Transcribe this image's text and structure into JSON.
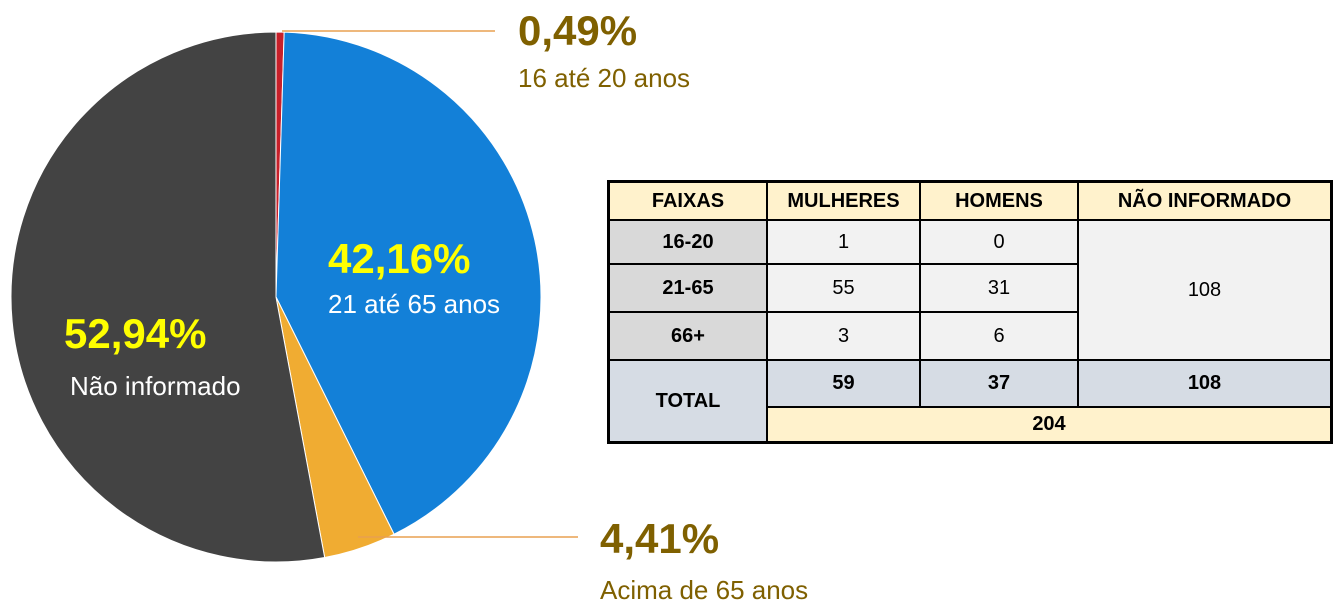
{
  "chart_data": {
    "type": "pie",
    "categories": [
      "16 até 20 anos",
      "21 até 65 anos",
      "Acima de 65 anos",
      "Não informado"
    ],
    "values": [
      0.49,
      42.16,
      4.41,
      52.94
    ],
    "value_labels": [
      "0,49%",
      "42,16%",
      "4,41%",
      "52,94%"
    ],
    "colors": [
      "#c8202a",
      "#1380d8",
      "#f0ac32",
      "#434343"
    ]
  },
  "table": {
    "header": [
      "FAIXAS",
      "MULHERES",
      "HOMENS",
      "NÃO INFORMADO"
    ],
    "rows": [
      [
        "16-20",
        1,
        0
      ],
      [
        "21-65",
        55,
        31
      ],
      [
        "66+",
        3,
        6
      ]
    ],
    "nao_informado": 108,
    "total": {
      "label": "TOTAL",
      "values": [
        59,
        37,
        108
      ],
      "grand": 204
    }
  }
}
